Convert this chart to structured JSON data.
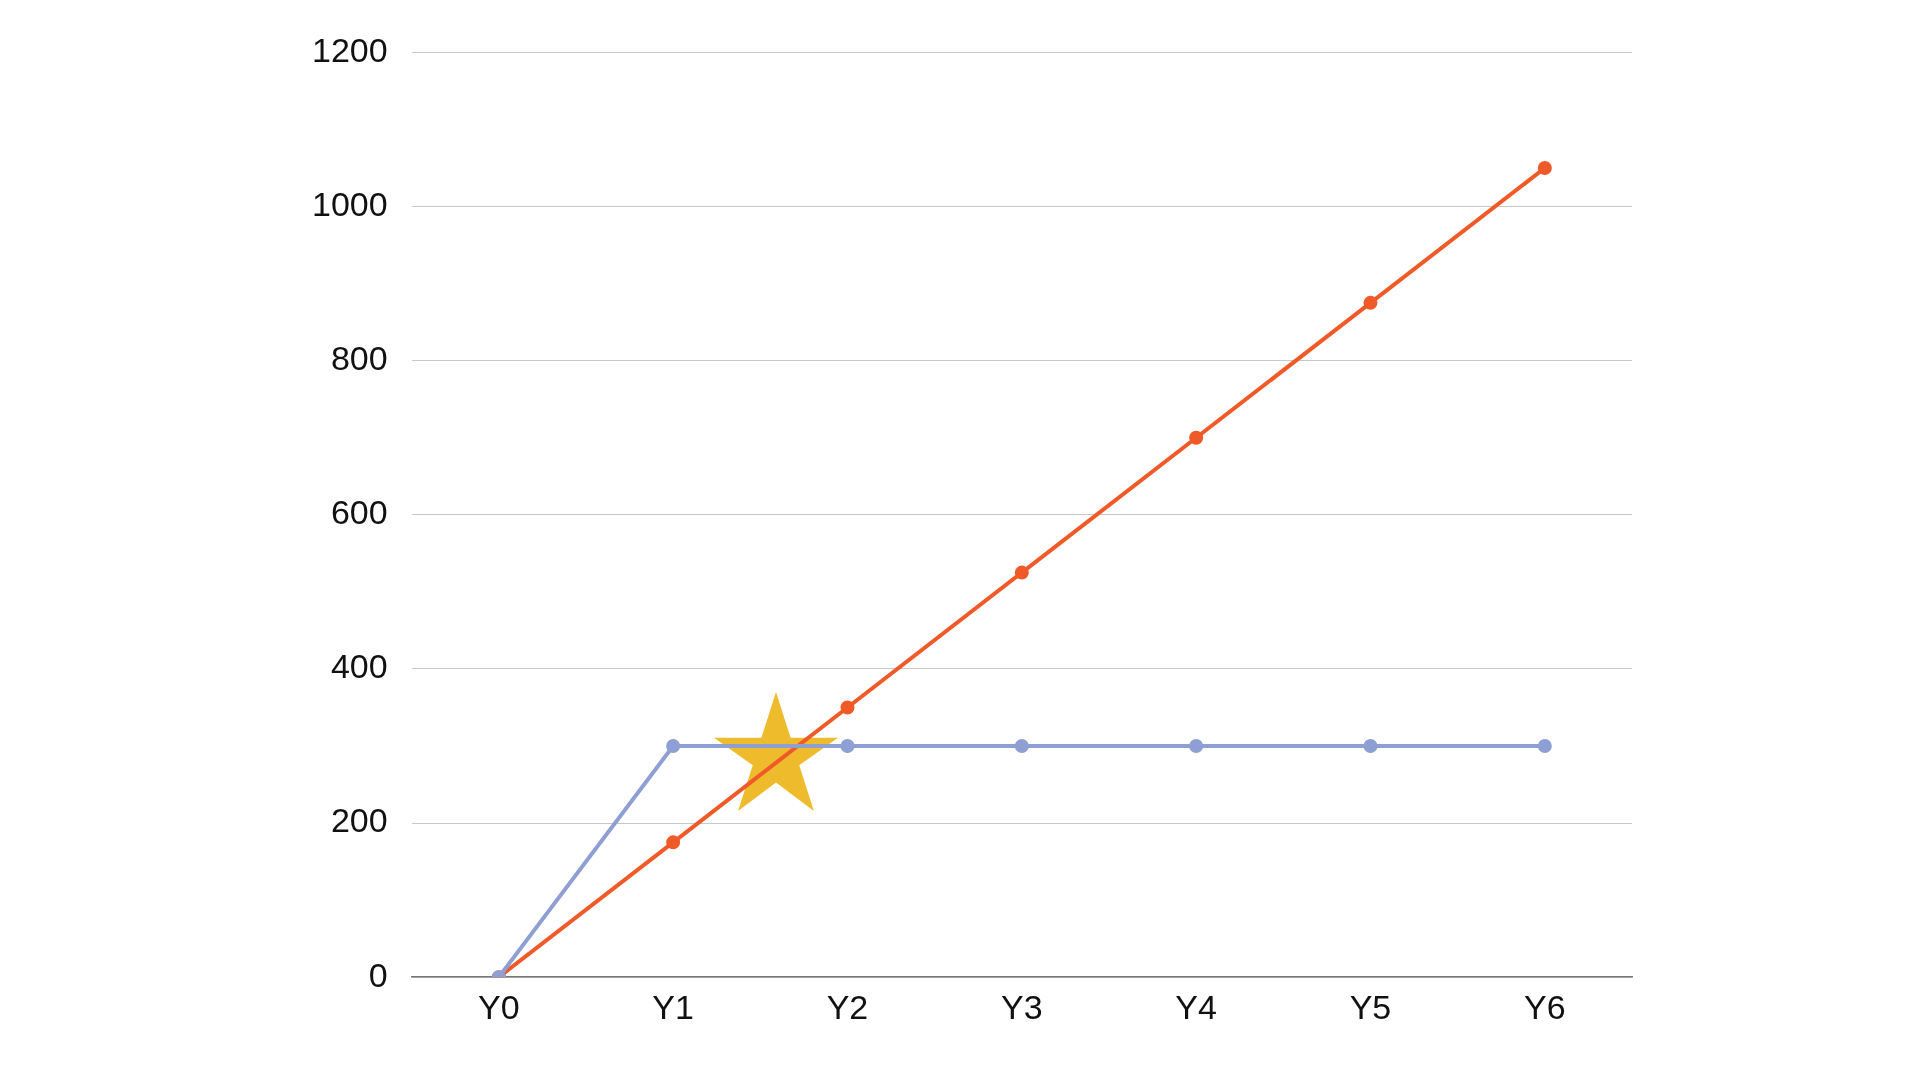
{
  "chart_data": {
    "type": "line",
    "categories": [
      "Y0",
      "Y1",
      "Y2",
      "Y3",
      "Y4",
      "Y5",
      "Y6"
    ],
    "series": [
      {
        "color": "#8e9fd4",
        "values": [
          0,
          300,
          300,
          300,
          300,
          300,
          300
        ]
      },
      {
        "color": "#f05a28",
        "values": [
          0,
          175,
          350,
          525,
          700,
          875,
          1050
        ]
      }
    ],
    "ylim": [
      0,
      1200
    ],
    "yticks": [
      0,
      200,
      400,
      600,
      800,
      1000,
      1200
    ],
    "grid": "y",
    "legend": false,
    "marker": "circle",
    "line_style": "solid"
  }
}
